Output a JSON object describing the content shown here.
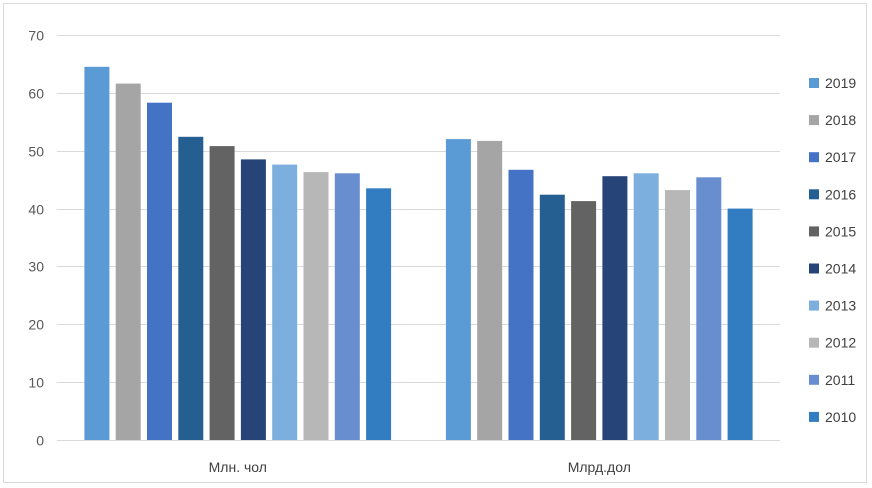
{
  "chart_data": {
    "type": "bar",
    "title": "",
    "xlabel": "",
    "ylabel": "",
    "ylim": [
      0,
      70
    ],
    "yticks": [
      0,
      10,
      20,
      30,
      40,
      50,
      60,
      70
    ],
    "grid": true,
    "legend_position": "right",
    "categories": [
      "Млн. чол",
      "Млрд.дол"
    ],
    "series": [
      {
        "name": "2019",
        "color": "#5b9bd5",
        "values": [
          64.5,
          52.0
        ]
      },
      {
        "name": "2018",
        "color": "#a5a5a5",
        "values": [
          61.6,
          51.7
        ]
      },
      {
        "name": "2017",
        "color": "#4472c4",
        "values": [
          58.3,
          46.7
        ]
      },
      {
        "name": "2016",
        "color": "#255e91",
        "values": [
          52.4,
          42.4
        ]
      },
      {
        "name": "2015",
        "color": "#636363",
        "values": [
          50.8,
          41.3
        ]
      },
      {
        "name": "2014",
        "color": "#264478",
        "values": [
          48.5,
          45.6
        ]
      },
      {
        "name": "2013",
        "color": "#7cafdd",
        "values": [
          47.6,
          46.1
        ]
      },
      {
        "name": "2012",
        "color": "#b7b7b7",
        "values": [
          46.3,
          43.2
        ]
      },
      {
        "name": "2011",
        "color": "#698ed0",
        "values": [
          46.1,
          45.4
        ]
      },
      {
        "name": "2010",
        "color": "#327dc2",
        "values": [
          43.5,
          40.0
        ]
      }
    ]
  }
}
